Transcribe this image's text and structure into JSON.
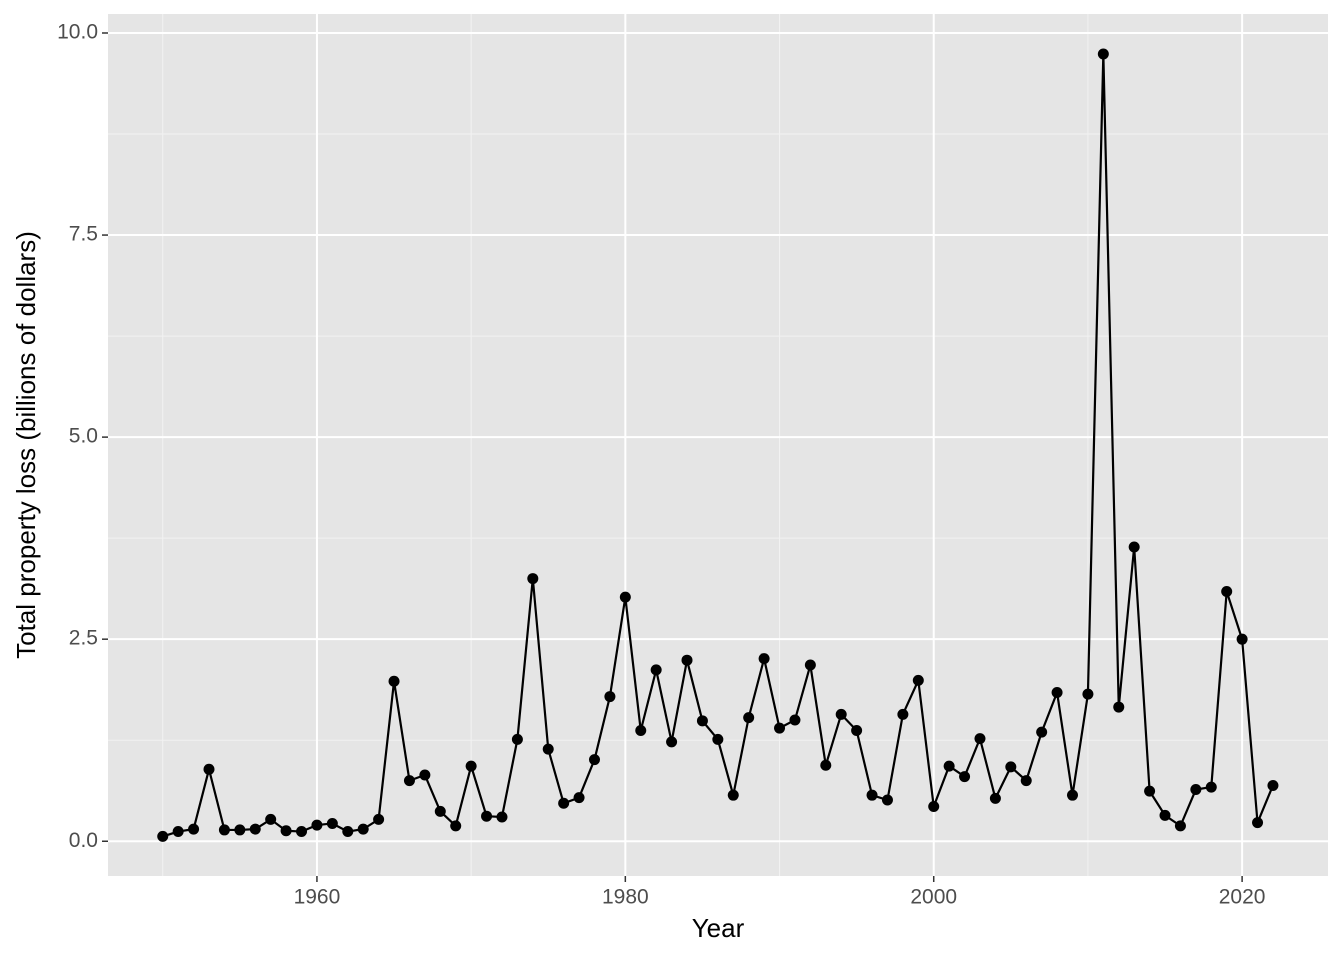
{
  "chart_data": {
    "type": "line",
    "xlabel": "Year",
    "ylabel": "Total property loss (billions of dollars)",
    "x": [
      1950,
      1951,
      1952,
      1953,
      1954,
      1955,
      1956,
      1957,
      1958,
      1959,
      1960,
      1961,
      1962,
      1963,
      1964,
      1965,
      1966,
      1967,
      1968,
      1969,
      1970,
      1971,
      1972,
      1973,
      1974,
      1975,
      1976,
      1977,
      1978,
      1979,
      1980,
      1981,
      1982,
      1983,
      1984,
      1985,
      1986,
      1987,
      1988,
      1989,
      1990,
      1991,
      1992,
      1993,
      1994,
      1995,
      1996,
      1997,
      1998,
      1999,
      2000,
      2001,
      2002,
      2003,
      2004,
      2005,
      2006,
      2007,
      2008,
      2009,
      2010,
      2011,
      2012,
      2013,
      2014,
      2015,
      2016,
      2017,
      2018,
      2019,
      2020,
      2021,
      2022
    ],
    "series": [
      {
        "color": "#000000",
        "values": [
          0.06,
          0.12,
          0.15,
          0.89,
          0.14,
          0.14,
          0.15,
          0.27,
          0.13,
          0.12,
          0.2,
          0.22,
          0.12,
          0.15,
          0.27,
          1.98,
          0.75,
          0.82,
          0.37,
          0.19,
          0.93,
          0.31,
          0.3,
          1.26,
          3.25,
          1.14,
          0.47,
          0.54,
          1.01,
          1.79,
          3.02,
          1.37,
          2.12,
          1.23,
          2.24,
          1.49,
          1.26,
          0.57,
          1.53,
          2.26,
          1.4,
          1.5,
          2.18,
          0.94,
          1.57,
          1.37,
          0.57,
          0.51,
          1.57,
          1.99,
          0.43,
          0.93,
          0.8,
          1.27,
          0.53,
          0.92,
          0.75,
          1.35,
          1.84,
          0.57,
          1.82,
          9.74,
          1.66,
          3.64,
          0.62,
          0.32,
          0.19,
          0.64,
          0.67,
          3.09,
          2.5,
          0.23,
          0.69
        ]
      }
    ],
    "xlim": [
      1946.45,
      2025.57
    ],
    "ylim": [
      -0.43,
      10.235
    ],
    "xticks": [
      1960,
      1980,
      2000,
      2020
    ],
    "yticks": [
      {
        "value": 0,
        "label": "0.0"
      },
      2.5,
      {
        "value": 5,
        "label": "5.0"
      },
      7.5,
      {
        "value": 10,
        "label": "10.0"
      }
    ],
    "xminor": [
      1950,
      1970,
      1990,
      2010
    ],
    "yminor": [
      1.25,
      3.75,
      6.25,
      8.75
    ],
    "grid": true,
    "markers": true
  }
}
